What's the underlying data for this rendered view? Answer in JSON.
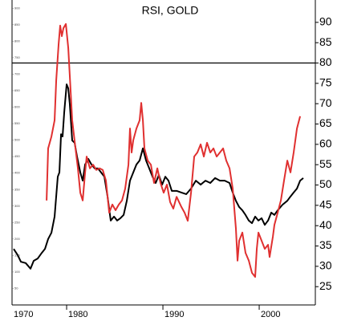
{
  "chart_data": {
    "type": "line",
    "title": "RSI, GOLD",
    "xlim": [
      1974.33,
      2005.83
    ],
    "xticks": [
      1970,
      1980,
      1990,
      2000
    ],
    "ylim": [
      0,
      925
    ],
    "yticks": [
      50,
      100,
      150,
      200,
      250,
      300,
      350,
      400,
      450,
      500,
      550,
      600,
      650,
      700,
      750,
      800,
      850,
      900
    ],
    "y2lim": [
      20.5,
      95.5
    ],
    "y2ticks": [
      25,
      30,
      35,
      40,
      45,
      50,
      55,
      60,
      65,
      70,
      75,
      80,
      85,
      90
    ],
    "reference_line": {
      "value": 80,
      "axis": "y2",
      "color": "#000000"
    },
    "series": [
      {
        "color": "#000000",
        "axis": "y",
        "x": [
          1974.5,
          1974.92,
          1975.25,
          1975.75,
          1976.25,
          1976.58,
          1977,
          1977.42,
          1977.75,
          1978.08,
          1978.42,
          1978.75,
          1979.08,
          1979.25,
          1979.42,
          1979.58,
          1979.75,
          1980,
          1980.17,
          1980.33,
          1980.58,
          1980.83,
          1981.08,
          1981.42,
          1981.67,
          1981.92,
          1982.25,
          1982.58,
          1982.92,
          1983.25,
          1983.58,
          1983.92,
          1984.25,
          1984.58,
          1984.92,
          1985.25,
          1985.58,
          1985.92,
          1986.25,
          1986.58,
          1986.92,
          1987.25,
          1987.58,
          1987.92,
          1988.25,
          1988.58,
          1988.92,
          1989.25,
          1989.58,
          1989.92,
          1990.25,
          1990.58,
          1990.92,
          1991.42,
          1991.92,
          1992.42,
          1992.92,
          1993.42,
          1993.92,
          1994.42,
          1994.92,
          1995.42,
          1995.92,
          1996.42,
          1996.92,
          1997.25,
          1997.58,
          1997.92,
          1998.25,
          1998.58,
          1998.92,
          1999.25,
          1999.58,
          1999.92,
          2000.25,
          2000.58,
          2000.92,
          2001.25,
          2001.58,
          2001.92,
          2002.42,
          2002.92,
          2003.25,
          2003.58,
          2003.92,
          2004.25,
          2004.58
        ],
        "values": [
          170,
          151,
          131,
          127,
          110,
          134,
          141,
          158,
          170,
          200,
          219,
          268,
          389,
          402,
          518,
          511,
          584,
          669,
          657,
          609,
          499,
          492,
          450,
          402,
          377,
          426,
          443,
          426,
          414,
          414,
          402,
          389,
          329,
          256,
          268,
          256,
          263,
          273,
          316,
          377,
          402,
          426,
          438,
          475,
          438,
          414,
          389,
          370,
          394,
          365,
          389,
          377,
          346,
          346,
          341,
          336,
          353,
          377,
          365,
          377,
          370,
          385,
          377,
          377,
          370,
          341,
          316,
          297,
          287,
          273,
          256,
          248,
          268,
          256,
          263,
          243,
          256,
          280,
          273,
          287,
          304,
          316,
          329,
          341,
          353,
          377,
          385
        ]
      },
      {
        "color": "#e03030",
        "axis": "y2",
        "x": [
          1977.92,
          1978.08,
          1978.42,
          1978.75,
          1978.92,
          1979.17,
          1979.33,
          1979.5,
          1979.67,
          1979.92,
          1980.17,
          1980.33,
          1980.58,
          1980.92,
          1981.17,
          1981.42,
          1981.67,
          1981.92,
          1982.08,
          1982.42,
          1982.75,
          1983.08,
          1983.42,
          1983.75,
          1984.08,
          1984.42,
          1984.75,
          1985.08,
          1985.42,
          1985.75,
          1986.08,
          1986.42,
          1986.58,
          1986.75,
          1986.92,
          1987.25,
          1987.58,
          1987.75,
          1987.92,
          1988.08,
          1988.42,
          1988.75,
          1989.08,
          1989.42,
          1989.75,
          1990.08,
          1990.42,
          1990.75,
          1991.08,
          1991.42,
          1991.92,
          1992.25,
          1992.58,
          1992.92,
          1993.25,
          1993.58,
          1993.92,
          1994.25,
          1994.58,
          1994.92,
          1995.25,
          1995.58,
          1995.92,
          1996.25,
          1996.58,
          1996.92,
          1997.25,
          1997.58,
          1997.75,
          1997.92,
          1998.25,
          1998.58,
          1998.92,
          1999.25,
          1999.58,
          1999.75,
          1999.92,
          2000.25,
          2000.58,
          2000.92,
          2001.08,
          2001.42,
          2001.58,
          2001.92,
          2002.25,
          2002.58,
          2002.92,
          2003.25,
          2003.58,
          2003.92,
          2004.25
        ],
        "values": [
          46.2,
          59.0,
          61.9,
          65.9,
          75.8,
          84.7,
          89.2,
          86.6,
          88.6,
          89.6,
          83.7,
          76.8,
          65.9,
          59.0,
          54.1,
          48.1,
          46.2,
          53.1,
          57.0,
          54.1,
          55.0,
          53.7,
          54.1,
          53.7,
          51.1,
          43.2,
          45.2,
          43.8,
          45.2,
          46.2,
          49.1,
          55.0,
          63.9,
          58.0,
          61.0,
          63.9,
          65.9,
          70.2,
          65.9,
          59.0,
          56.0,
          55.0,
          50.5,
          54.1,
          50.5,
          48.1,
          50.1,
          45.8,
          44.2,
          47.1,
          44.6,
          43.2,
          41.2,
          48.1,
          57.0,
          58.0,
          60.0,
          57.0,
          60.4,
          58.0,
          59.0,
          57.0,
          58.0,
          59.0,
          56.0,
          54.1,
          49.1,
          39.3,
          31.4,
          36.3,
          38.3,
          33.3,
          31.4,
          28.4,
          27.4,
          34.3,
          38.3,
          36.3,
          34.3,
          35.3,
          32.3,
          37.3,
          40.2,
          43.2,
          46.2,
          51.1,
          56.0,
          53.1,
          58.0,
          63.9,
          66.9
        ]
      }
    ]
  }
}
